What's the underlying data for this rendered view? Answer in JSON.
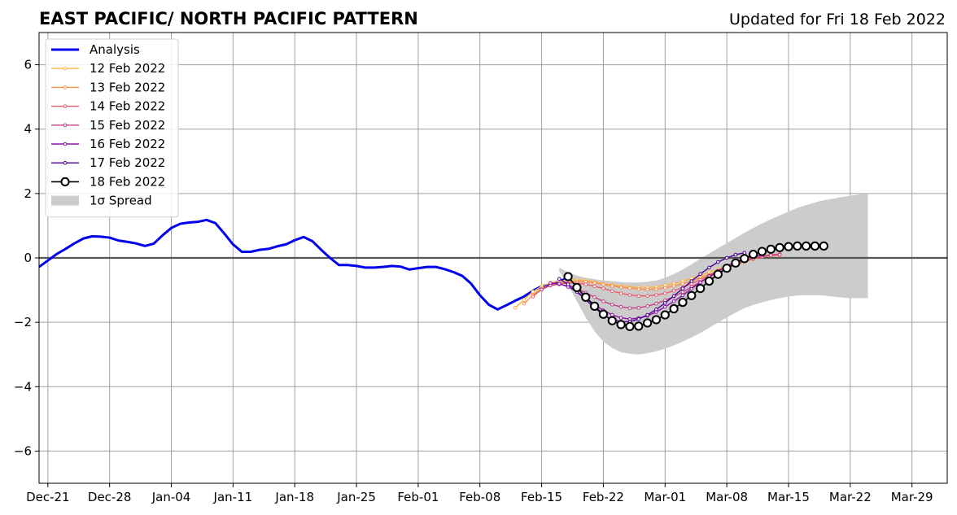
{
  "chart_data": {
    "type": "line",
    "title": "EAST PACIFIC/ NORTH PACIFIC PATTERN",
    "subtitle": "Updated for Fri 18 Feb 2022",
    "x_start_date": "2021-12-20",
    "xlim": [
      "2021-12-20",
      "2022-04-02"
    ],
    "ylim": [
      -7,
      7
    ],
    "yticks": [
      -6,
      -4,
      -2,
      0,
      2,
      4,
      6
    ],
    "ytick_labels": [
      "−6",
      "−4",
      "−2",
      "0",
      "2",
      "4",
      "6"
    ],
    "xticks": [
      "2021-12-21",
      "2021-12-28",
      "2022-01-04",
      "2022-01-11",
      "2022-01-18",
      "2022-01-25",
      "2022-02-01",
      "2022-02-08",
      "2022-02-15",
      "2022-02-22",
      "2022-03-01",
      "2022-03-08",
      "2022-03-15",
      "2022-03-22",
      "2022-03-29"
    ],
    "xtick_labels": [
      "Dec-21",
      "Dec-28",
      "Jan-04",
      "Jan-11",
      "Jan-18",
      "Jan-25",
      "Feb-01",
      "Feb-08",
      "Feb-15",
      "Feb-22",
      "Mar-01",
      "Mar-08",
      "Mar-15",
      "Mar-22",
      "Mar-29"
    ],
    "grid": true,
    "zero_line": true,
    "legend_position": "upper-left",
    "series": [
      {
        "name": "Analysis",
        "color": "#0000ee",
        "style": "analysis",
        "start_day": 0,
        "values": [
          -0.28,
          -0.08,
          0.12,
          0.28,
          0.45,
          0.6,
          0.67,
          0.66,
          0.63,
          0.54,
          0.5,
          0.45,
          0.37,
          0.44,
          0.7,
          0.93,
          1.06,
          1.1,
          1.12,
          1.18,
          1.08,
          0.76,
          0.42,
          0.19,
          0.19,
          0.25,
          0.28,
          0.36,
          0.42,
          0.55,
          0.65,
          0.52,
          0.25,
          0.0,
          -0.22,
          -0.22,
          -0.25,
          -0.3,
          -0.3,
          -0.28,
          -0.25,
          -0.27,
          -0.36,
          -0.32,
          -0.28,
          -0.28,
          -0.35,
          -0.44,
          -0.56,
          -0.8,
          -1.16,
          -1.45,
          -1.6,
          -1.47,
          -1.33,
          -1.2,
          -1.02,
          -0.88,
          -0.82,
          -0.72,
          -0.62
        ]
      },
      {
        "name": "12 Feb 2022",
        "color": "#fbb441",
        "style": "forecast",
        "start_day": 54,
        "values": [
          -1.55,
          -1.3,
          -1.05,
          -0.88,
          -0.78,
          -0.72,
          -0.68,
          -0.68,
          -0.7,
          -0.75,
          -0.8,
          -0.84,
          -0.88,
          -0.9,
          -0.92,
          -0.92,
          -0.9,
          -0.85,
          -0.8,
          -0.72,
          -0.64,
          -0.55,
          -0.45,
          -0.35,
          -0.25,
          -0.15,
          -0.06,
          0.01,
          0.05,
          0.07,
          0.08
        ]
      },
      {
        "name": "13 Feb 2022",
        "color": "#f98d4e",
        "style": "forecast",
        "start_day": 55,
        "values": [
          -1.42,
          -1.15,
          -0.95,
          -0.85,
          -0.78,
          -0.75,
          -0.73,
          -0.74,
          -0.78,
          -0.82,
          -0.87,
          -0.91,
          -0.94,
          -0.97,
          -0.98,
          -0.97,
          -0.93,
          -0.87,
          -0.8,
          -0.72,
          -0.62,
          -0.52,
          -0.42,
          -0.32,
          -0.22,
          -0.12,
          -0.04,
          0.03,
          0.07,
          0.09
        ]
      },
      {
        "name": "14 Feb 2022",
        "color": "#e75e6a",
        "style": "forecast",
        "start_day": 56,
        "values": [
          -1.2,
          -0.98,
          -0.86,
          -0.8,
          -0.78,
          -0.78,
          -0.82,
          -0.88,
          -0.95,
          -1.03,
          -1.1,
          -1.15,
          -1.18,
          -1.18,
          -1.15,
          -1.1,
          -1.02,
          -0.92,
          -0.8,
          -0.68,
          -0.55,
          -0.42,
          -0.3,
          -0.18,
          -0.08,
          0.0,
          0.06,
          0.1,
          0.12
        ]
      },
      {
        "name": "15 Feb 2022",
        "color": "#c13f84",
        "style": "forecast",
        "start_day": 57,
        "values": [
          -0.98,
          -0.85,
          -0.82,
          -0.86,
          -0.95,
          -1.08,
          -1.22,
          -1.35,
          -1.45,
          -1.52,
          -1.56,
          -1.55,
          -1.5,
          -1.42,
          -1.32,
          -1.2,
          -1.06,
          -0.9,
          -0.75,
          -0.6,
          -0.45,
          -0.32,
          -0.2,
          -0.1,
          -0.02,
          0.04,
          0.08,
          0.1
        ]
      },
      {
        "name": "16 Feb 2022",
        "color": "#8b12a3",
        "style": "forecast",
        "start_day": 58,
        "values": [
          -0.78,
          -0.8,
          -0.9,
          -1.05,
          -1.23,
          -1.45,
          -1.63,
          -1.77,
          -1.86,
          -1.9,
          -1.87,
          -1.8,
          -1.68,
          -1.52,
          -1.35,
          -1.16,
          -0.96,
          -0.76,
          -0.57,
          -0.4,
          -0.25,
          -0.12,
          -0.02,
          0.05,
          0.09
        ]
      },
      {
        "name": "17 Feb 2022",
        "color": "#4c0096",
        "style": "forecast",
        "start_day": 59,
        "values": [
          -0.65,
          -0.82,
          -1.05,
          -1.3,
          -1.55,
          -1.77,
          -1.92,
          -1.98,
          -1.98,
          -1.9,
          -1.77,
          -1.6,
          -1.4,
          -1.18,
          -0.95,
          -0.72,
          -0.5,
          -0.3,
          -0.13,
          0.0,
          0.1,
          0.16
        ]
      },
      {
        "name": "18 Feb 2022",
        "color": "#000000",
        "style": "forecast-large",
        "start_day": 60,
        "values": [
          -0.58,
          -0.92,
          -1.22,
          -1.5,
          -1.75,
          -1.95,
          -2.07,
          -2.13,
          -2.12,
          -2.02,
          -1.92,
          -1.77,
          -1.58,
          -1.38,
          -1.17,
          -0.95,
          -0.72,
          -0.51,
          -0.32,
          -0.16,
          -0.02,
          0.11,
          0.2,
          0.27,
          0.32,
          0.35,
          0.37,
          0.37,
          0.37,
          0.37
        ]
      }
    ],
    "spread": {
      "name": "1σ Spread",
      "color": "#cccccc",
      "start_day": 59,
      "upper": [
        -0.3,
        -0.45,
        -0.55,
        -0.62,
        -0.66,
        -0.7,
        -0.72,
        -0.75,
        -0.76,
        -0.76,
        -0.74,
        -0.7,
        -0.62,
        -0.5,
        -0.36,
        -0.2,
        -0.03,
        0.14,
        0.3,
        0.46,
        0.62,
        0.78,
        0.93,
        1.07,
        1.2,
        1.32,
        1.44,
        1.55,
        1.64,
        1.72,
        1.79,
        1.84,
        1.89,
        1.93,
        1.97,
        2.0
      ],
      "lower": [
        -0.42,
        -0.85,
        -1.35,
        -1.85,
        -2.28,
        -2.6,
        -2.8,
        -2.93,
        -2.98,
        -3.0,
        -2.96,
        -2.9,
        -2.82,
        -2.72,
        -2.6,
        -2.47,
        -2.33,
        -2.17,
        -2.01,
        -1.85,
        -1.7,
        -1.56,
        -1.46,
        -1.38,
        -1.31,
        -1.25,
        -1.2,
        -1.17,
        -1.16,
        -1.16,
        -1.17,
        -1.2,
        -1.23,
        -1.25,
        -1.25,
        -1.25
      ]
    }
  }
}
